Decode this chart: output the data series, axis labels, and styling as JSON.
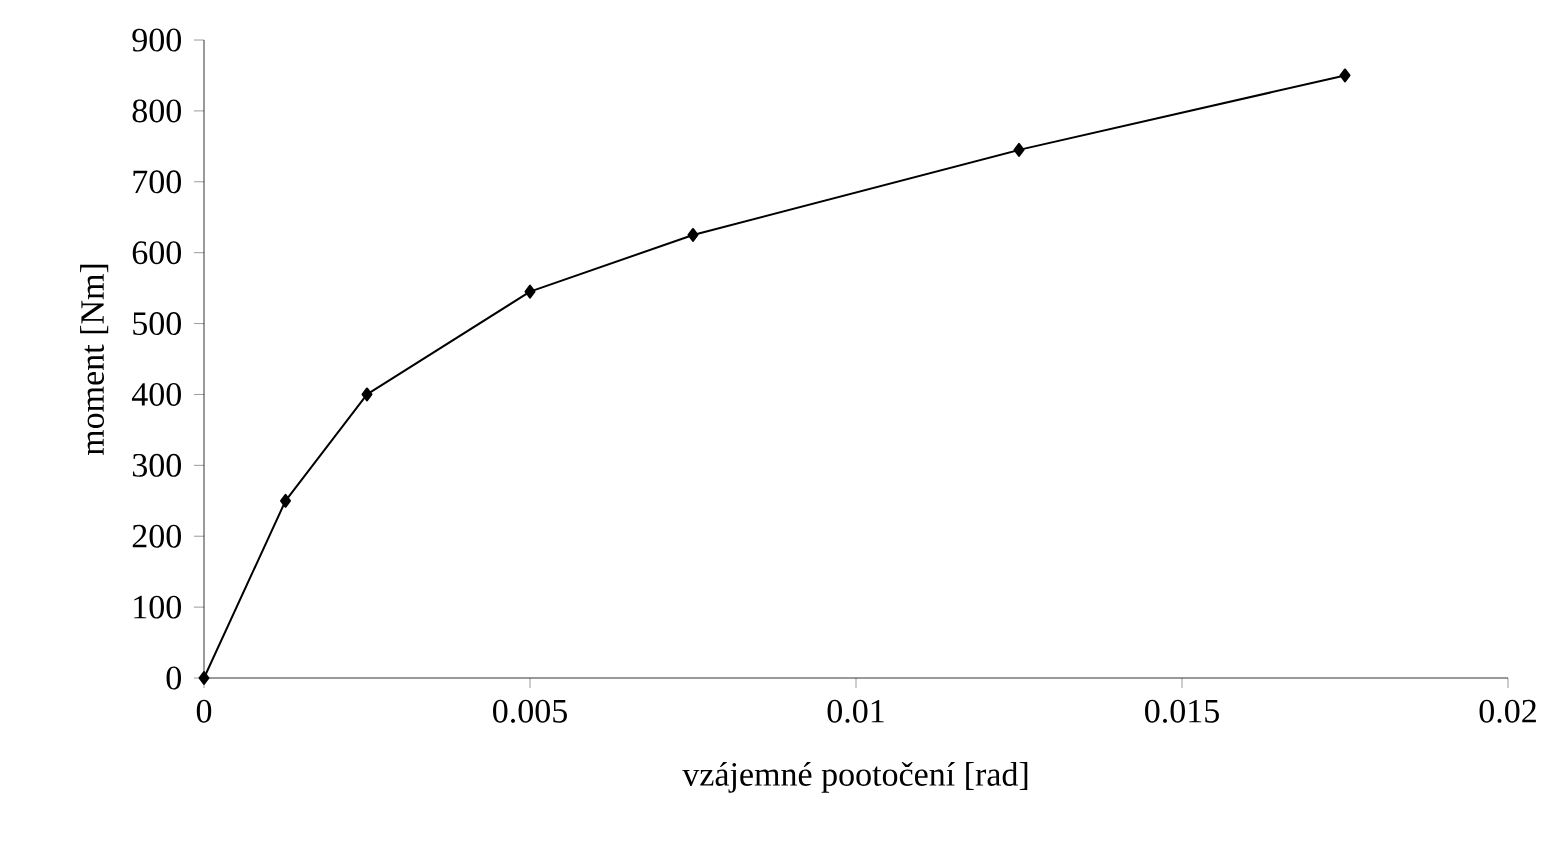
{
  "chart_data": {
    "type": "line",
    "xlabel": "vzájemné pootočení [rad]",
    "ylabel": "moment [Nm]",
    "x": [
      0,
      0.00125,
      0.0025,
      0.005,
      0.0075,
      0.0125,
      0.0175
    ],
    "series": [
      {
        "color": "#000000",
        "values": [
          0,
          250,
          400,
          545,
          625,
          745,
          850
        ]
      }
    ],
    "xlim": [
      0,
      0.02
    ],
    "ylim": [
      0,
      900
    ],
    "xticks": [
      0,
      0.005,
      0.01,
      0.015,
      0.02
    ],
    "yticks": [
      0,
      100,
      200,
      300,
      400,
      500,
      600,
      700,
      800,
      900
    ],
    "grid": false,
    "marker": "diamond",
    "line_style": "solid"
  }
}
